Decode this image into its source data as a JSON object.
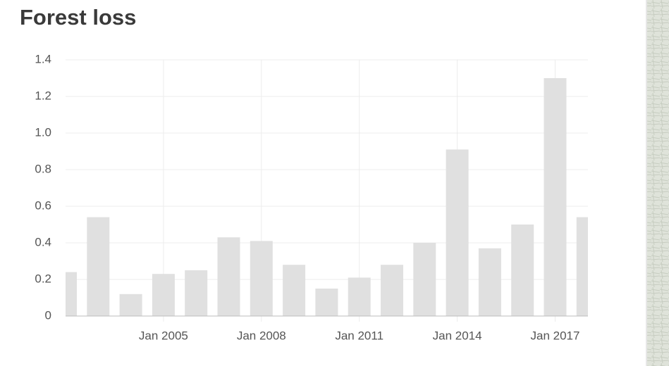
{
  "chart_data": {
    "type": "bar",
    "title": "Forest loss",
    "x": [
      "Jan 2002",
      "Jan 2003",
      "Jan 2004",
      "Jan 2005",
      "Jan 2006",
      "Jan 2007",
      "Jan 2008",
      "Jan 2009",
      "Jan 2010",
      "Jan 2011",
      "Jan 2012",
      "Jan 2013",
      "Jan 2014",
      "Jan 2015",
      "Jan 2016",
      "Jan 2017",
      "Jan 2018"
    ],
    "values": [
      0.24,
      0.54,
      0.12,
      0.23,
      0.25,
      0.43,
      0.41,
      0.28,
      0.15,
      0.21,
      0.28,
      0.4,
      0.91,
      0.37,
      0.5,
      1.3,
      0.54
    ],
    "color": "#e0e0e0",
    "ylim": [
      0,
      1.4
    ],
    "yticks": [
      0,
      0.2,
      0.4,
      0.6,
      0.8,
      {
        "value": 1,
        "label": "1.0"
      },
      1.2,
      1.4
    ],
    "xticks": [
      "Jan 2005",
      "Jan 2008",
      "Jan 2011",
      "Jan 2014",
      "Jan 2017"
    ],
    "grid": true
  }
}
